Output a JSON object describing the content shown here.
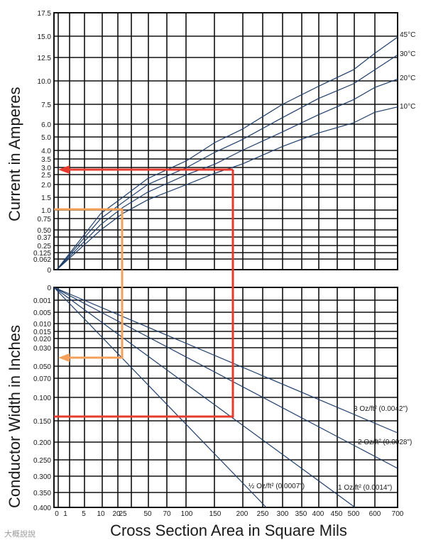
{
  "chart_data": [
    {
      "type": "line",
      "panel": "top",
      "ylabel": "Current in Amperes",
      "xlabel": "Cross Section Area in Square Mils",
      "y_tick_labels": [
        "0",
        "0.062",
        "0.125",
        "0.25",
        "0.37",
        "0.50",
        "0.75",
        "1.0",
        "1.5",
        "2.0",
        "2.5",
        "3.0",
        "3.5",
        "4.0",
        "5.0",
        "6.0",
        "7.5",
        "10.0",
        "12.5",
        "15.0",
        "17.5"
      ],
      "x_tick_labels": [
        "0",
        "1",
        "5",
        "10",
        "20",
        "25",
        "50",
        "70",
        "100",
        "150",
        "200",
        "250",
        "300",
        "350",
        "400",
        "450",
        "500",
        "600",
        "700"
      ],
      "series": [
        {
          "name": "45°C",
          "x": [
            0,
            10,
            25,
            50,
            100,
            150,
            200,
            300,
            400,
            500,
            600,
            700
          ],
          "y": [
            0,
            0.9,
            1.5,
            2.3,
            3.4,
            4.6,
            5.6,
            7.5,
            9.4,
            11.2,
            13.0,
            14.9
          ]
        },
        {
          "name": "30°C",
          "x": [
            0,
            10,
            25,
            50,
            100,
            150,
            200,
            300,
            400,
            500,
            600,
            700
          ],
          "y": [
            0,
            0.75,
            1.3,
            2.0,
            3.0,
            3.9,
            4.8,
            6.5,
            8.1,
            9.7,
            11.2,
            12.8
          ]
        },
        {
          "name": "20°C",
          "x": [
            0,
            10,
            25,
            50,
            100,
            150,
            200,
            300,
            400,
            500,
            600,
            700
          ],
          "y": [
            0,
            0.62,
            1.1,
            1.7,
            2.5,
            3.2,
            4.0,
            5.4,
            6.7,
            8.0,
            9.3,
            10.2
          ]
        },
        {
          "name": "10°C",
          "x": [
            0,
            10,
            25,
            50,
            100,
            150,
            200,
            300,
            400,
            500,
            600,
            700
          ],
          "y": [
            0,
            0.5,
            0.9,
            1.4,
            2.0,
            2.6,
            3.2,
            4.3,
            5.3,
            6.1,
            6.9,
            7.3
          ]
        }
      ]
    },
    {
      "type": "line",
      "panel": "bottom",
      "ylabel": "Conductor Width in Inches",
      "xlabel": "Cross Section Area in Square Mils",
      "y_tick_labels": [
        "0",
        "0.001",
        "0.005",
        "0.010",
        "0.015",
        "0.020",
        "0.030",
        "0.050",
        "0.070",
        "0.100",
        "0.150",
        "0.200",
        "0.250",
        "0.300",
        "0.350",
        "0.400"
      ],
      "x_tick_labels": [
        "0",
        "1",
        "5",
        "10",
        "20",
        "25",
        "50",
        "70",
        "100",
        "150",
        "200",
        "250",
        "300",
        "350",
        "400",
        "450",
        "500",
        "600",
        "700"
      ],
      "series": [
        {
          "name": "3 Oz/ft² (0.0042\")",
          "x": [
            0,
            700
          ],
          "y": [
            0,
            0.1667
          ]
        },
        {
          "name": "2 Oz/ft² (0.0028\")",
          "x": [
            0,
            700
          ],
          "y": [
            0,
            0.25
          ]
        },
        {
          "name": "1 Oz/ft² (0.0014\")",
          "x": [
            0,
            500
          ],
          "y": [
            0,
            0.357
          ]
        },
        {
          "name": "½ Oz/ft² (0.0007\")",
          "x": [
            0,
            250
          ],
          "y": [
            0,
            0.357
          ]
        }
      ]
    }
  ],
  "examples": [
    {
      "color": "#e63a2e",
      "x": 180,
      "width": 0.145,
      "current": 2.75
    },
    {
      "color": "#f2a05a",
      "x": 25,
      "width": 0.04,
      "current": 1.0
    }
  ],
  "watermark": "大概說說"
}
